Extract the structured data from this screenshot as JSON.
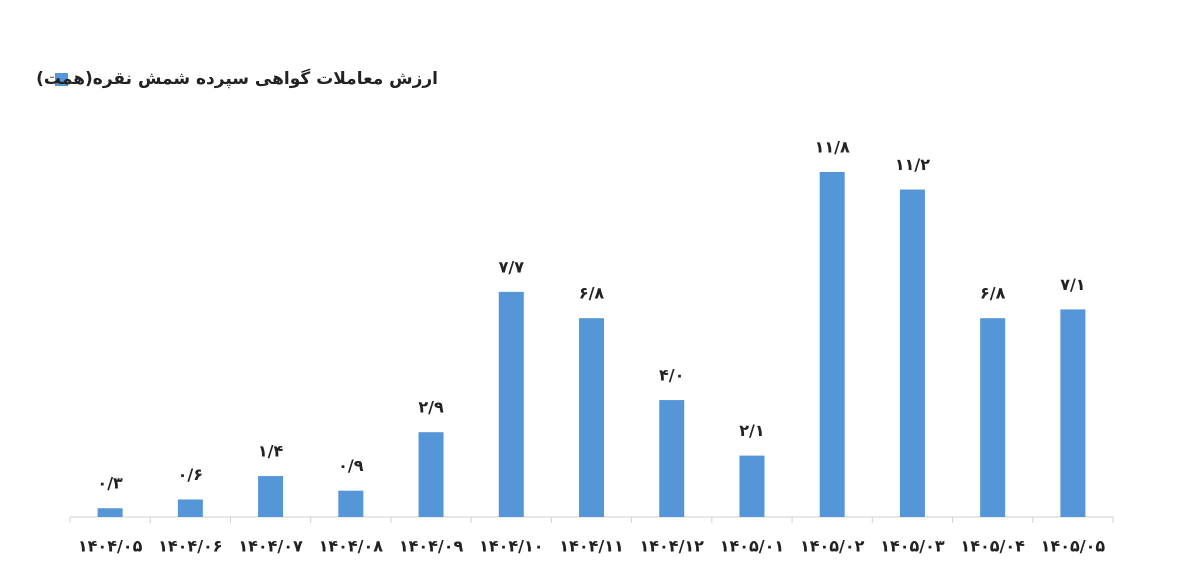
{
  "chart_data": {
    "type": "bar",
    "categories": [
      "۱۴۰۴/۰۵",
      "۱۴۰۴/۰۶",
      "۱۴۰۴/۰۷",
      "۱۴۰۴/۰۸",
      "۱۴۰۴/۰۹",
      "۱۴۰۴/۱۰",
      "۱۴۰۴/۱۱",
      "۱۴۰۴/۱۲",
      "۱۴۰۵/۰۱",
      "۱۴۰۵/۰۲",
      "۱۴۰۵/۰۳",
      "۱۴۰۵/۰۴",
      "۱۴۰۵/۰۵"
    ],
    "series": [
      {
        "name": "ارزش معاملات گواهی سپرده شمش نقره(همت)",
        "color": "#5596d8",
        "values": [
          0.3,
          0.6,
          1.4,
          0.9,
          2.9,
          7.7,
          6.8,
          4.0,
          2.1,
          11.8,
          11.2,
          6.8,
          7.1
        ],
        "value_labels": [
          "۰/۳",
          "۰/۶",
          "۱/۴",
          "۰/۹",
          "۲/۹",
          "۷/۷",
          "۶/۸",
          "۴/۰",
          "۲/۱",
          "۱۱/۸",
          "۱۱/۲",
          "۶/۸",
          "۷/۱"
        ]
      }
    ],
    "legend": "top-left"
  }
}
